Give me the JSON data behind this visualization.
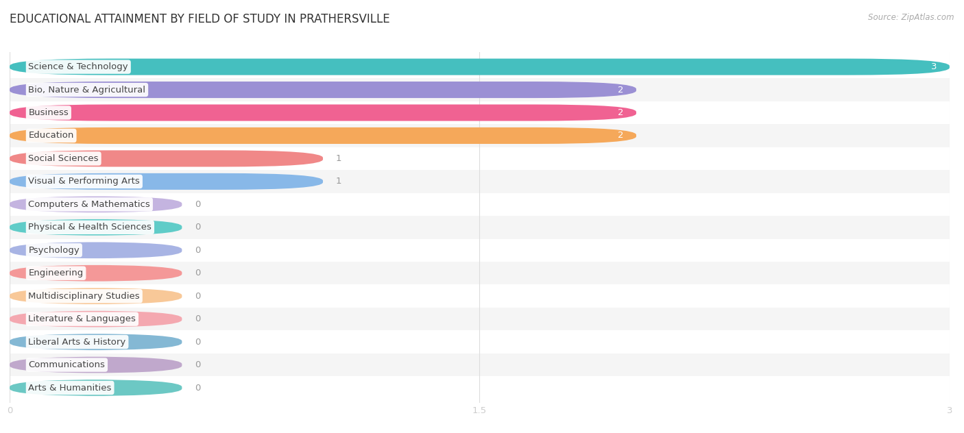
{
  "title": "EDUCATIONAL ATTAINMENT BY FIELD OF STUDY IN PRATHERSVILLE",
  "source": "Source: ZipAtlas.com",
  "categories": [
    "Science & Technology",
    "Bio, Nature & Agricultural",
    "Business",
    "Education",
    "Social Sciences",
    "Visual & Performing Arts",
    "Computers & Mathematics",
    "Physical & Health Sciences",
    "Psychology",
    "Engineering",
    "Multidisciplinary Studies",
    "Literature & Languages",
    "Liberal Arts & History",
    "Communications",
    "Arts & Humanities"
  ],
  "values": [
    3,
    2,
    2,
    2,
    1,
    1,
    0,
    0,
    0,
    0,
    0,
    0,
    0,
    0,
    0
  ],
  "bar_colors": [
    "#45bfbf",
    "#9b90d4",
    "#f06292",
    "#f5a85a",
    "#f08888",
    "#88b8e8",
    "#c4b4e0",
    "#60ccc8",
    "#a8b4e4",
    "#f49898",
    "#f8c898",
    "#f4a8b0",
    "#84b8d4",
    "#c0a8cc",
    "#6cc8c4"
  ],
  "zero_bar_width": 0.55,
  "xlim": [
    0,
    3
  ],
  "xticks": [
    0,
    1.5,
    3
  ],
  "background_color": "#ffffff",
  "row_colors": [
    "#ffffff",
    "#f5f5f5"
  ],
  "title_fontsize": 12,
  "label_fontsize": 9.5,
  "value_fontsize": 9.5
}
